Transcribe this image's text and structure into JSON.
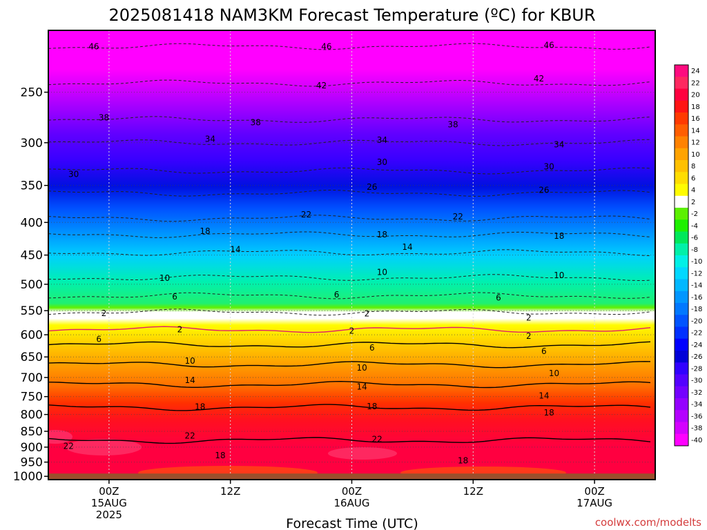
{
  "title": "2025081418 NAM3KM Forecast Temperature (ºC) for KBUR",
  "credit": "coolwx.com/modelts",
  "colors": {
    "ground": "#9b4f2c",
    "frame": "#000000",
    "grid": "#d8d8d8",
    "credit": "#d43c3c",
    "zero_line": "#e0206a",
    "positive_contour": "#000000",
    "negative_contour": "#222222"
  },
  "chart_data": {
    "type": "heatmap",
    "title": "2025081418 NAM3KM Forecast Temperature (ºC) for KBUR",
    "xlabel": "Forecast Time (UTC)",
    "ylabel": "",
    "x_range_hours": [
      -6,
      54
    ],
    "y_range_hpa": [
      200,
      1012
    ],
    "y_scale": "log",
    "y_inverted": true,
    "grid": true,
    "ground_level_hpa": 990,
    "y_ticks": [
      250,
      300,
      350,
      400,
      450,
      500,
      550,
      600,
      650,
      700,
      750,
      800,
      850,
      900,
      950,
      1000
    ],
    "x_ticks": [
      {
        "hour": 0,
        "lines": [
          "00Z",
          "15AUG",
          "2025"
        ]
      },
      {
        "hour": 12,
        "lines": [
          "12Z"
        ]
      },
      {
        "hour": 24,
        "lines": [
          "00Z",
          "16AUG"
        ]
      },
      {
        "hour": 36,
        "lines": [
          "12Z"
        ]
      },
      {
        "hour": 48,
        "lines": [
          "00Z",
          "17AUG"
        ]
      }
    ],
    "contours": [
      {
        "value": -46,
        "p": 212
      },
      {
        "value": -42,
        "p": 242
      },
      {
        "value": -38,
        "p": 276
      },
      {
        "value": -34,
        "p": 300
      },
      {
        "value": -30,
        "p": 332
      },
      {
        "value": -26,
        "p": 360
      },
      {
        "value": -22,
        "p": 394
      },
      {
        "value": -18,
        "p": 418
      },
      {
        "value": -14,
        "p": 446
      },
      {
        "value": -10,
        "p": 488
      },
      {
        "value": -6,
        "p": 521
      },
      {
        "value": -2,
        "p": 553
      },
      {
        "value": 2,
        "p": 589
      },
      {
        "value": 6,
        "p": 622
      },
      {
        "value": 10,
        "p": 668
      },
      {
        "value": 14,
        "p": 718
      },
      {
        "value": 18,
        "p": 780
      },
      {
        "value": 22,
        "p": 878
      }
    ],
    "contour_labels": [
      {
        "text": "46",
        "hour": -1.5,
        "p": 212
      },
      {
        "text": "46",
        "hour": 21.5,
        "p": 212
      },
      {
        "text": "46",
        "hour": 43.5,
        "p": 211
      },
      {
        "text": "42",
        "hour": 21,
        "p": 244
      },
      {
        "text": "42",
        "hour": 42.5,
        "p": 238
      },
      {
        "text": "38",
        "hour": -0.5,
        "p": 274
      },
      {
        "text": "38",
        "hour": 14.5,
        "p": 279
      },
      {
        "text": "38",
        "hour": 34,
        "p": 281
      },
      {
        "text": "34",
        "hour": 10,
        "p": 296
      },
      {
        "text": "34",
        "hour": 27,
        "p": 297
      },
      {
        "text": "34",
        "hour": 44.5,
        "p": 302
      },
      {
        "text": "30",
        "hour": -3.5,
        "p": 336
      },
      {
        "text": "30",
        "hour": 27,
        "p": 322
      },
      {
        "text": "30",
        "hour": 43.5,
        "p": 327
      },
      {
        "text": "26",
        "hour": 26,
        "p": 352
      },
      {
        "text": "26",
        "hour": 43,
        "p": 356
      },
      {
        "text": "22",
        "hour": 19.5,
        "p": 389
      },
      {
        "text": "22",
        "hour": 34.5,
        "p": 392
      },
      {
        "text": "18",
        "hour": 9.5,
        "p": 413
      },
      {
        "text": "18",
        "hour": 27,
        "p": 418
      },
      {
        "text": "18",
        "hour": 44.5,
        "p": 420
      },
      {
        "text": "14",
        "hour": 12.5,
        "p": 441
      },
      {
        "text": "14",
        "hour": 29.5,
        "p": 437
      },
      {
        "text": "10",
        "hour": 5.5,
        "p": 489
      },
      {
        "text": "10",
        "hour": 27,
        "p": 479
      },
      {
        "text": "10",
        "hour": 44.5,
        "p": 484
      },
      {
        "text": "6",
        "hour": 6.5,
        "p": 523
      },
      {
        "text": "6",
        "hour": 22.5,
        "p": 519
      },
      {
        "text": "6",
        "hour": 38.5,
        "p": 525
      },
      {
        "text": "2",
        "hour": -0.5,
        "p": 555
      },
      {
        "text": "2",
        "hour": 25.5,
        "p": 556
      },
      {
        "text": "2",
        "hour": 41.5,
        "p": 564
      },
      {
        "text": "2",
        "hour": 7,
        "p": 589
      },
      {
        "text": "2",
        "hour": 24,
        "p": 592
      },
      {
        "text": "2",
        "hour": 41.5,
        "p": 603
      },
      {
        "text": "6",
        "hour": -1,
        "p": 610
      },
      {
        "text": "6",
        "hour": 26,
        "p": 629
      },
      {
        "text": "6",
        "hour": 43,
        "p": 637
      },
      {
        "text": "10",
        "hour": 8,
        "p": 659
      },
      {
        "text": "10",
        "hour": 25,
        "p": 676
      },
      {
        "text": "10",
        "hour": 44,
        "p": 690
      },
      {
        "text": "14",
        "hour": 8,
        "p": 707
      },
      {
        "text": "14",
        "hour": 25,
        "p": 724
      },
      {
        "text": "14",
        "hour": 43,
        "p": 748
      },
      {
        "text": "18",
        "hour": 9,
        "p": 778
      },
      {
        "text": "18",
        "hour": 26,
        "p": 777
      },
      {
        "text": "18",
        "hour": 43.5,
        "p": 795
      },
      {
        "text": "22",
        "hour": 8,
        "p": 864
      },
      {
        "text": "22",
        "hour": -4,
        "p": 897
      },
      {
        "text": "22",
        "hour": 26.5,
        "p": 875
      },
      {
        "text": "18",
        "hour": 11,
        "p": 928
      },
      {
        "text": "18",
        "hour": 35,
        "p": 945
      }
    ],
    "colorbar": {
      "levels": [
        "24",
        "22",
        "20",
        "18",
        "16",
        "14",
        "12",
        "10",
        "8",
        "6",
        "4",
        "2",
        "-2",
        "-4",
        "-6",
        "-8",
        "-10",
        "-12",
        "-14",
        "-16",
        "-18",
        "-20",
        "-22",
        "-24",
        "-26",
        "-28",
        "-30",
        "-32",
        "-34",
        "-36",
        "-38",
        "-40"
      ],
      "colors": [
        "#fe0b7f",
        "#fe2860",
        "#ff0040",
        "#ff1414",
        "#ff3a00",
        "#ff5e00",
        "#ff8200",
        "#ffa300",
        "#ffc100",
        "#ffdd00",
        "#fffc00",
        "#ffffff",
        "#5cf000",
        "#1ef000",
        "#00e85a",
        "#00f0a8",
        "#00f0e6",
        "#00d8ff",
        "#00b8ff",
        "#0096ff",
        "#0078ff",
        "#0054ff",
        "#0030ff",
        "#0000ff",
        "#0000d8",
        "#3000ff",
        "#5400ff",
        "#7400ff",
        "#9400ff",
        "#b400ff",
        "#d400ff",
        "#ff00ff"
      ]
    }
  }
}
